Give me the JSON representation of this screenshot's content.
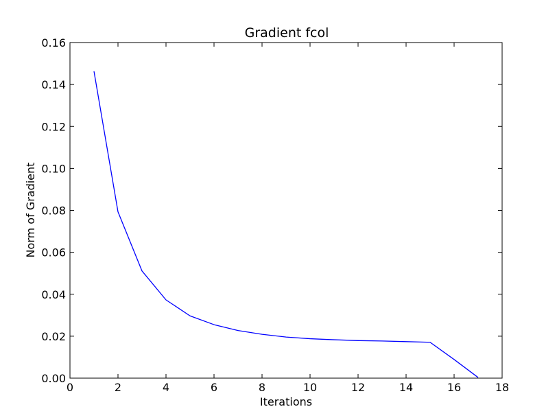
{
  "chart_data": {
    "type": "line",
    "title": "Gradient fcol",
    "xlabel": "Iterations",
    "ylabel": "Norm of Gradient",
    "xlim": [
      0,
      18
    ],
    "ylim": [
      0,
      0.16
    ],
    "xticks": [
      0,
      2,
      4,
      6,
      8,
      10,
      12,
      14,
      16,
      18
    ],
    "xtick_labels": [
      "0",
      "2",
      "4",
      "6",
      "8",
      "10",
      "12",
      "14",
      "16",
      "18"
    ],
    "yticks": [
      0,
      0.02,
      0.04,
      0.06,
      0.08,
      0.1,
      0.12,
      0.14,
      0.16
    ],
    "ytick_labels": [
      "0.00",
      "0.02",
      "0.04",
      "0.06",
      "0.08",
      "0.10",
      "0.12",
      "0.14",
      "0.16"
    ],
    "grid": false,
    "legend": "none",
    "series": [
      {
        "color": "#0000ff",
        "x": [
          1,
          2,
          3,
          4,
          5,
          6,
          7,
          8,
          9,
          10,
          11,
          12,
          13,
          14,
          15,
          16,
          17
        ],
        "y": [
          0.1463,
          0.0793,
          0.0511,
          0.0373,
          0.0297,
          0.0255,
          0.0227,
          0.0209,
          0.0196,
          0.0188,
          0.0183,
          0.0179,
          0.0177,
          0.0174,
          0.0171,
          0.0089,
          0.0003
        ]
      }
    ]
  }
}
